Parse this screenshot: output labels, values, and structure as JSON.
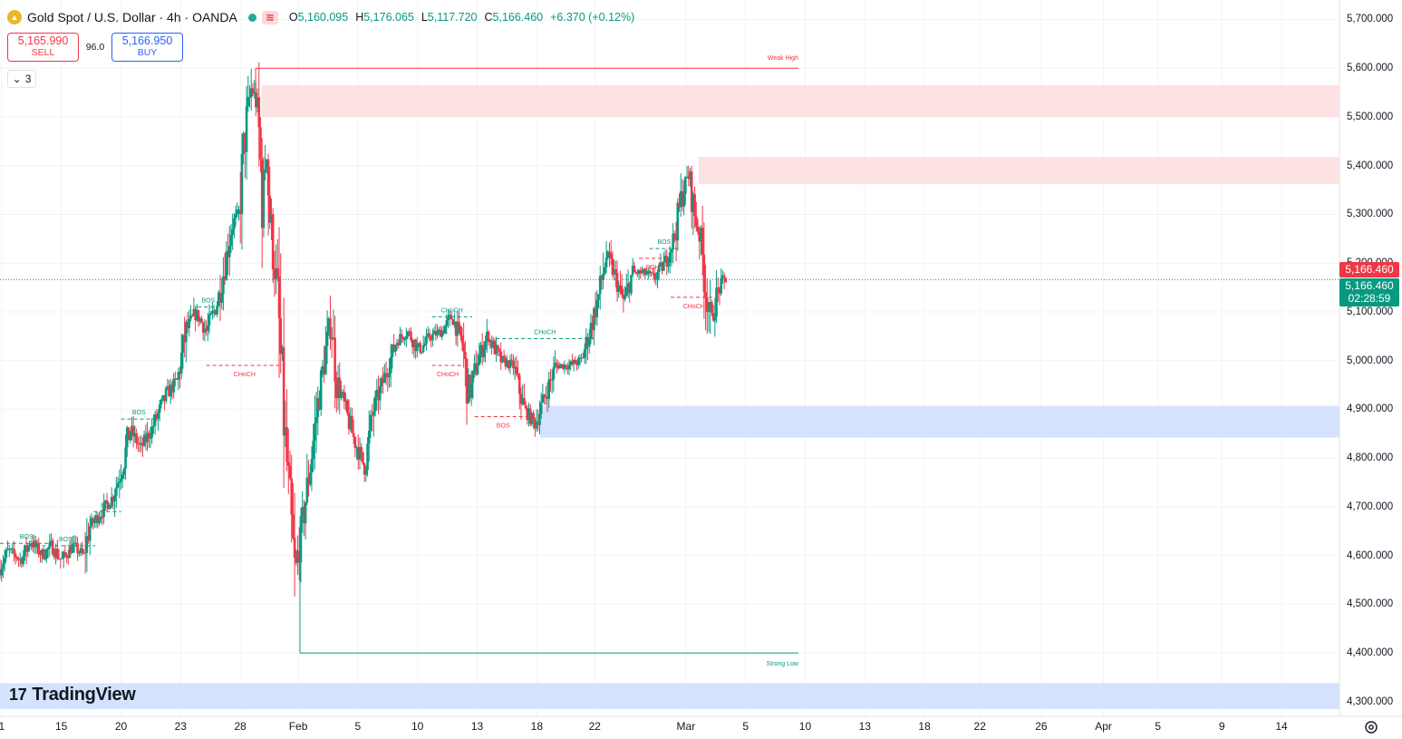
{
  "header": {
    "symbol_title": "Gold Spot / U.S. Dollar · 4h · OANDA",
    "coin_icon": "gold-coin-icon",
    "indicator_icon": "wave-indicator-icon",
    "ohlc": [
      {
        "key": "O",
        "value": "5,160.095"
      },
      {
        "key": "H",
        "value": "5,176.065"
      },
      {
        "key": "L",
        "value": "5,117.720"
      },
      {
        "key": "C",
        "value": "5,166.460"
      },
      {
        "key": "",
        "value": "+6.370 (+0.12%)"
      }
    ]
  },
  "trade": {
    "sell_price": "5,165.990",
    "sell_label": "SELL",
    "spread": "96.0",
    "buy_price": "5,166.950",
    "buy_label": "BUY"
  },
  "indicators_toggle": {
    "count": "3"
  },
  "price_tags": {
    "last_price": "5,166.460",
    "current_price": "5,166.460",
    "countdown": "02:28:59"
  },
  "branding": {
    "logo_text": "TradingView"
  },
  "colors": {
    "up": "#089981",
    "down": "#f23645",
    "supply_zone": "#fde2e4",
    "demand_zone": "#d4e2fd",
    "bullish_marker": "#089981",
    "bearish_marker": "#f23645"
  },
  "chart_data": {
    "type": "candlestick",
    "ylim": [
      4270,
      5740
    ],
    "y_ticks": [
      {
        "value": 5700,
        "label": "5,700.000"
      },
      {
        "value": 5600,
        "label": "5,600.000"
      },
      {
        "value": 5500,
        "label": "5,500.000"
      },
      {
        "value": 5400,
        "label": "5,400.000"
      },
      {
        "value": 5300,
        "label": "5,300.000"
      },
      {
        "value": 5200,
        "label": "5,200.000"
      },
      {
        "value": 5100,
        "label": "5,100.000"
      },
      {
        "value": 5000,
        "label": "5,000.000"
      },
      {
        "value": 4900,
        "label": "4,900.000"
      },
      {
        "value": 4800,
        "label": "4,800.000"
      },
      {
        "value": 4700,
        "label": "4,700.000"
      },
      {
        "value": 4600,
        "label": "4,600.000"
      },
      {
        "value": 4500,
        "label": "4,500.000"
      },
      {
        "value": 4400,
        "label": "4,400.000"
      },
      {
        "value": 4300,
        "label": "4,300.000"
      }
    ],
    "x_range": [
      0.88,
      16.6
    ],
    "x_ticks": [
      {
        "idx": 0.9,
        "label": "1"
      },
      {
        "idx": 1.6,
        "label": "15"
      },
      {
        "idx": 2.3,
        "label": "20"
      },
      {
        "idx": 3.0,
        "label": "23"
      },
      {
        "idx": 3.7,
        "label": "28"
      },
      {
        "idx": 4.38,
        "label": "Feb"
      },
      {
        "idx": 5.08,
        "label": "5"
      },
      {
        "idx": 5.78,
        "label": "10"
      },
      {
        "idx": 6.48,
        "label": "13"
      },
      {
        "idx": 7.18,
        "label": "18"
      },
      {
        "idx": 7.86,
        "label": "22"
      },
      {
        "idx": 8.93,
        "label": "Mar"
      },
      {
        "idx": 9.63,
        "label": "5"
      },
      {
        "idx": 10.33,
        "label": "10"
      },
      {
        "idx": 11.03,
        "label": "13"
      },
      {
        "idx": 11.73,
        "label": "18"
      },
      {
        "idx": 12.38,
        "label": "22"
      },
      {
        "idx": 13.1,
        "label": "26"
      },
      {
        "idx": 13.83,
        "label": "Apr"
      },
      {
        "idx": 14.47,
        "label": "5"
      },
      {
        "idx": 15.22,
        "label": "9"
      },
      {
        "idx": 15.92,
        "label": "14"
      }
    ],
    "grid": true,
    "current_price": 5166.46,
    "price_path": [
      {
        "idx": 0.88,
        "price": 4570
      },
      {
        "idx": 1.0,
        "price": 4610
      },
      {
        "idx": 1.15,
        "price": 4590
      },
      {
        "idx": 1.25,
        "price": 4630
      },
      {
        "idx": 1.4,
        "price": 4600
      },
      {
        "idx": 1.5,
        "price": 4620
      },
      {
        "idx": 1.62,
        "price": 4590
      },
      {
        "idx": 1.75,
        "price": 4620
      },
      {
        "idx": 1.88,
        "price": 4600
      },
      {
        "idx": 1.95,
        "price": 4660
      },
      {
        "idx": 2.05,
        "price": 4680
      },
      {
        "idx": 2.22,
        "price": 4720
      },
      {
        "idx": 2.35,
        "price": 4790
      },
      {
        "idx": 2.42,
        "price": 4860
      },
      {
        "idx": 2.55,
        "price": 4820
      },
      {
        "idx": 2.68,
        "price": 4860
      },
      {
        "idx": 2.85,
        "price": 4930
      },
      {
        "idx": 2.98,
        "price": 4960
      },
      {
        "idx": 3.08,
        "price": 5060
      },
      {
        "idx": 3.2,
        "price": 5100
      },
      {
        "idx": 3.32,
        "price": 5060
      },
      {
        "idx": 3.45,
        "price": 5120
      },
      {
        "idx": 3.52,
        "price": 5180
      },
      {
        "idx": 3.62,
        "price": 5280
      },
      {
        "idx": 3.7,
        "price": 5300
      },
      {
        "idx": 3.78,
        "price": 5480
      },
      {
        "idx": 3.85,
        "price": 5560
      },
      {
        "idx": 3.92,
        "price": 5520
      },
      {
        "idx": 3.98,
        "price": 5320
      },
      {
        "idx": 4.02,
        "price": 5450
      },
      {
        "idx": 4.08,
        "price": 5250
      },
      {
        "idx": 4.15,
        "price": 5150
      },
      {
        "idx": 4.22,
        "price": 4900
      },
      {
        "idx": 4.3,
        "price": 4700
      },
      {
        "idx": 4.36,
        "price": 4560
      },
      {
        "idx": 4.45,
        "price": 4670
      },
      {
        "idx": 4.55,
        "price": 4800
      },
      {
        "idx": 4.62,
        "price": 4900
      },
      {
        "idx": 4.72,
        "price": 5020
      },
      {
        "idx": 4.78,
        "price": 5080
      },
      {
        "idx": 4.85,
        "price": 4960
      },
      {
        "idx": 4.95,
        "price": 4900
      },
      {
        "idx": 5.05,
        "price": 4840
      },
      {
        "idx": 5.18,
        "price": 4780
      },
      {
        "idx": 5.28,
        "price": 4900
      },
      {
        "idx": 5.4,
        "price": 4960
      },
      {
        "idx": 5.55,
        "price": 5040
      },
      {
        "idx": 5.68,
        "price": 5060
      },
      {
        "idx": 5.82,
        "price": 5020
      },
      {
        "idx": 5.95,
        "price": 5050
      },
      {
        "idx": 6.08,
        "price": 5060
      },
      {
        "idx": 6.2,
        "price": 5090
      },
      {
        "idx": 6.32,
        "price": 5040
      },
      {
        "idx": 6.4,
        "price": 4920
      },
      {
        "idx": 6.5,
        "price": 5000
      },
      {
        "idx": 6.62,
        "price": 5050
      },
      {
        "idx": 6.78,
        "price": 5000
      },
      {
        "idx": 6.92,
        "price": 4990
      },
      {
        "idx": 7.05,
        "price": 4900
      },
      {
        "idx": 7.18,
        "price": 4870
      },
      {
        "idx": 7.3,
        "price": 4930
      },
      {
        "idx": 7.42,
        "price": 4990
      },
      {
        "idx": 7.58,
        "price": 4990
      },
      {
        "idx": 7.72,
        "price": 5000
      },
      {
        "idx": 7.82,
        "price": 5060
      },
      {
        "idx": 7.92,
        "price": 5130
      },
      {
        "idx": 8.02,
        "price": 5220
      },
      {
        "idx": 8.12,
        "price": 5170
      },
      {
        "idx": 8.22,
        "price": 5120
      },
      {
        "idx": 8.32,
        "price": 5180
      },
      {
        "idx": 8.45,
        "price": 5180
      },
      {
        "idx": 8.58,
        "price": 5170
      },
      {
        "idx": 8.7,
        "price": 5200
      },
      {
        "idx": 8.82,
        "price": 5260
      },
      {
        "idx": 8.9,
        "price": 5340
      },
      {
        "idx": 8.98,
        "price": 5380
      },
      {
        "idx": 9.05,
        "price": 5300
      },
      {
        "idx": 9.12,
        "price": 5250
      },
      {
        "idx": 9.18,
        "price": 5150
      },
      {
        "idx": 9.24,
        "price": 5080
      },
      {
        "idx": 9.32,
        "price": 5140
      },
      {
        "idx": 9.4,
        "price": 5166
      }
    ],
    "zones": [
      {
        "type": "supply",
        "x0": 3.95,
        "x1": 16.6,
        "y0": 5500,
        "y1": 5565
      },
      {
        "type": "supply",
        "x0": 9.08,
        "x1": 16.6,
        "y0": 5362,
        "y1": 5418
      },
      {
        "type": "demand",
        "x0": 7.22,
        "x1": 16.6,
        "y0": 4842,
        "y1": 4907
      },
      {
        "type": "demand",
        "x0": 0.88,
        "x1": 16.6,
        "y0": 4285,
        "y1": 4338
      }
    ],
    "levels": [
      {
        "name": "weak-high",
        "label": "Weak High",
        "price": 5600,
        "x0": 3.88,
        "x1": 10.25,
        "side": "bearish"
      },
      {
        "name": "strong-low",
        "label": "Strong Low",
        "price": 4400,
        "x0": 4.4,
        "x1": 10.25,
        "side": "bullish"
      }
    ],
    "structure_markers": [
      {
        "label": "BOS",
        "side": "bullish",
        "x0": 0.88,
        "x1": 1.5,
        "price": 4625
      },
      {
        "label": "BOS",
        "side": "bullish",
        "x0": 1.3,
        "x1": 2.0,
        "price": 4620
      },
      {
        "label": "BOS",
        "side": "bullish",
        "x0": 1.98,
        "x1": 2.3,
        "price": 4690
      },
      {
        "label": "BOS",
        "side": "bullish",
        "x0": 2.3,
        "x1": 2.72,
        "price": 4880
      },
      {
        "label": "BOS",
        "side": "bullish",
        "x0": 3.2,
        "x1": 3.45,
        "price": 5110
      },
      {
        "label": "CHoCH",
        "side": "bearish",
        "x0": 3.3,
        "x1": 4.2,
        "price": 4990
      },
      {
        "label": "CHoCH",
        "side": "bullish",
        "x0": 5.95,
        "x1": 6.42,
        "price": 5090
      },
      {
        "label": "CHoCH",
        "side": "bearish",
        "x0": 5.95,
        "x1": 6.32,
        "price": 4990
      },
      {
        "label": "BOS",
        "side": "bearish",
        "x0": 6.45,
        "x1": 7.12,
        "price": 4885
      },
      {
        "label": "CHoCH",
        "side": "bullish",
        "x0": 6.7,
        "x1": 7.85,
        "price": 5045
      },
      {
        "label": "BOS",
        "side": "bullish",
        "x0": 8.5,
        "x1": 8.85,
        "price": 5230
      },
      {
        "label": "EQH",
        "side": "bearish",
        "x0": 8.38,
        "x1": 8.7,
        "price": 5210
      },
      {
        "label": "CHoCH",
        "side": "bearish",
        "x0": 8.75,
        "x1": 9.3,
        "price": 5130
      }
    ]
  }
}
